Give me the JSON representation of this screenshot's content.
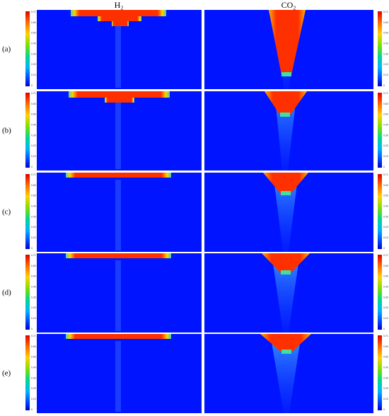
{
  "headers": [
    "H₂",
    "CO₂"
  ],
  "rows": [
    {
      "label": "(a)"
    },
    {
      "label": "(b)"
    },
    {
      "label": "(c)"
    },
    {
      "label": "(d)"
    },
    {
      "label": "(e)"
    }
  ],
  "colorbar_ticks": [
    "0.71",
    "0.60",
    "0.50",
    "0.40",
    "0.30",
    "0.20",
    "0.10",
    "0"
  ]
}
